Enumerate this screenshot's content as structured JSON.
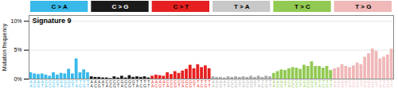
{
  "chart_data": {
    "type": "bar",
    "title": "Signature 9",
    "ylabel": "Mutation frequency",
    "categories": [
      "A\nA",
      "A\nC",
      "A\nG",
      "A\nT",
      "C\nA",
      "C\nC",
      "C\nG",
      "C\nT",
      "G\nA",
      "G\nC",
      "G\nG",
      "G\nT",
      "T\nA",
      "T\nC",
      "T\nG",
      "T\nT",
      "A\nA",
      "A\nC",
      "A\nG",
      "A\nT",
      "C\nA",
      "C\nC",
      "C\nG",
      "C\nT",
      "G\nA",
      "G\nC",
      "G\nG",
      "G\nT",
      "T\nA",
      "T\nC",
      "T\nG",
      "T\nT",
      "A\nA",
      "A\nC",
      "A\nG",
      "A\nT",
      "C\nA",
      "C\nC",
      "C\nG",
      "C\nT",
      "G\nA",
      "G\nC",
      "G\nG",
      "G\nT",
      "T\nA",
      "T\nC",
      "T\nG",
      "T\nT",
      "A\nA",
      "A\nC",
      "A\nG",
      "A\nT",
      "C\nA",
      "C\nC",
      "C\nG",
      "C\nT",
      "G\nA",
      "G\nC",
      "G\nG",
      "G\nT",
      "T\nA",
      "T\nC",
      "T\nG",
      "T\nT",
      "A\nA",
      "A\nC",
      "A\nG",
      "A\nT",
      "C\nA",
      "C\nC",
      "C\nG",
      "C\nT",
      "G\nA",
      "G\nC",
      "G\nG",
      "G\nT",
      "T\nA",
      "T\nC",
      "T\nG",
      "T\nT",
      "A\nA",
      "A\nC",
      "A\nG",
      "A\nT",
      "C\nA",
      "C\nC",
      "C\nG",
      "C\nT",
      "G\nA",
      "G\nC",
      "G\nG",
      "G\nT",
      "T\nA",
      "T\nC",
      "T\nG",
      "T\nT"
    ],
    "values": [
      0.011,
      0.009,
      0.008,
      0.009,
      0.007,
      0.005,
      0.011,
      0.007,
      0.01,
      0.009,
      0.017,
      0.009,
      0.035,
      0.011,
      0.016,
      0.011,
      0.004,
      0.003,
      0.003,
      0.002,
      0.002,
      0.001,
      0.004,
      0.002,
      0.005,
      0.002,
      0.006,
      0.003,
      0.004,
      0.003,
      0.004,
      0.002,
      0.005,
      0.007,
      0.006,
      0.005,
      0.011,
      0.008,
      0.013,
      0.01,
      0.014,
      0.017,
      0.024,
      0.018,
      0.025,
      0.02,
      0.023,
      0.018,
      0.004,
      0.003,
      0.003,
      0.002,
      0.004,
      0.003,
      0.004,
      0.003,
      0.004,
      0.003,
      0.005,
      0.003,
      0.005,
      0.003,
      0.005,
      0.004,
      0.01,
      0.013,
      0.016,
      0.015,
      0.018,
      0.02,
      0.019,
      0.017,
      0.024,
      0.022,
      0.03,
      0.022,
      0.022,
      0.019,
      0.022,
      0.015,
      0.018,
      0.02,
      0.025,
      0.022,
      0.02,
      0.023,
      0.028,
      0.025,
      0.038,
      0.044,
      0.052,
      0.048,
      0.035,
      0.038,
      0.042,
      0.052
    ],
    "colors": [
      "#38b9e9",
      "#38b9e9",
      "#38b9e9",
      "#38b9e9",
      "#38b9e9",
      "#38b9e9",
      "#38b9e9",
      "#38b9e9",
      "#38b9e9",
      "#38b9e9",
      "#38b9e9",
      "#38b9e9",
      "#38b9e9",
      "#38b9e9",
      "#38b9e9",
      "#38b9e9",
      "#1a1a1a",
      "#1a1a1a",
      "#1a1a1a",
      "#1a1a1a",
      "#1a1a1a",
      "#1a1a1a",
      "#1a1a1a",
      "#1a1a1a",
      "#1a1a1a",
      "#1a1a1a",
      "#1a1a1a",
      "#1a1a1a",
      "#1a1a1a",
      "#1a1a1a",
      "#1a1a1a",
      "#1a1a1a",
      "#e62020",
      "#e62020",
      "#e62020",
      "#e62020",
      "#e62020",
      "#e62020",
      "#e62020",
      "#e62020",
      "#e62020",
      "#e62020",
      "#e62020",
      "#e62020",
      "#e62020",
      "#e62020",
      "#e62020",
      "#e62020",
      "#aaaaaa",
      "#aaaaaa",
      "#aaaaaa",
      "#aaaaaa",
      "#aaaaaa",
      "#aaaaaa",
      "#aaaaaa",
      "#aaaaaa",
      "#aaaaaa",
      "#aaaaaa",
      "#aaaaaa",
      "#aaaaaa",
      "#aaaaaa",
      "#aaaaaa",
      "#aaaaaa",
      "#aaaaaa",
      "#92c952",
      "#92c952",
      "#92c952",
      "#92c952",
      "#92c952",
      "#92c952",
      "#92c952",
      "#92c952",
      "#92c952",
      "#92c952",
      "#92c952",
      "#92c952",
      "#92c952",
      "#92c952",
      "#92c952",
      "#92c952",
      "#f0b8b8",
      "#f0b8b8",
      "#f0b8b8",
      "#f0b8b8",
      "#f0b8b8",
      "#f0b8b8",
      "#f0b8b8",
      "#f0b8b8",
      "#f0b8b8",
      "#f0b8b8",
      "#f0b8b8",
      "#f0b8b8",
      "#f0b8b8",
      "#f0b8b8",
      "#f0b8b8",
      "#f0b8b8"
    ],
    "sections": [
      {
        "label": "C > A",
        "color": "#38b9e9"
      },
      {
        "label": "C > G",
        "color": "#1a1a1a"
      },
      {
        "label": "C > T",
        "color": "#e62020"
      },
      {
        "label": "T > A",
        "color": "#c8c8c8"
      },
      {
        "label": "T > C",
        "color": "#92c952"
      },
      {
        "label": "T > G",
        "color": "#f0b8b8"
      }
    ],
    "ylim": [
      0,
      0.11
    ],
    "yticks": [
      {
        "value": 0,
        "label": "0%"
      },
      {
        "value": 0.05,
        "label": "5%"
      },
      {
        "value": 0.1,
        "label": "10%"
      }
    ],
    "grid": true
  }
}
